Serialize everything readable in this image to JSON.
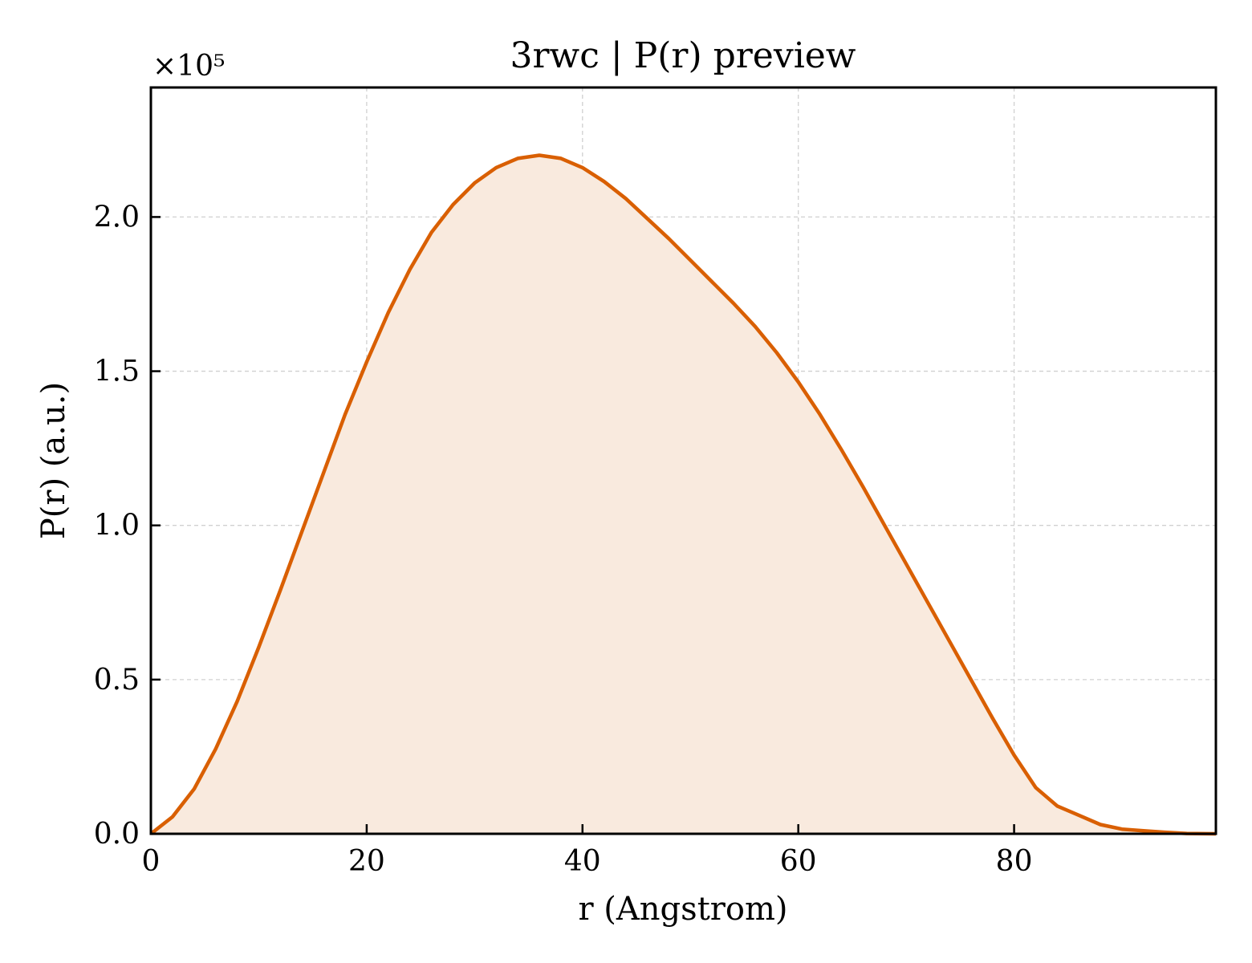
{
  "chart_data": {
    "type": "area",
    "title": "3rwc | P(r) preview",
    "xlabel": "r (Angstrom)",
    "ylabel": "P(r) (a.u.)",
    "y_offset_label": "×10⁵",
    "xlim": [
      0,
      98.7
    ],
    "ylim": [
      0,
      2.42
    ],
    "xticks": [
      0,
      20,
      40,
      60,
      80
    ],
    "xtick_labels": [
      "0",
      "20",
      "40",
      "60",
      "80"
    ],
    "yticks": [
      0,
      0.5,
      1.0,
      1.5,
      2.0
    ],
    "ytick_labels": [
      "0.0",
      "0.5",
      "1.0",
      "1.5",
      "2.0"
    ],
    "grid": true,
    "line_color": "#d95f02",
    "fill_color": "#f9eade",
    "series": [
      {
        "x": [
          0,
          2,
          4,
          6,
          8,
          10,
          12,
          14,
          16,
          18,
          20,
          22,
          24,
          26,
          28,
          30,
          32,
          34,
          36,
          38,
          40,
          42,
          44,
          46,
          48,
          50,
          52,
          54,
          56,
          58,
          60,
          62,
          64,
          66,
          68,
          70,
          72,
          74,
          76,
          78,
          80,
          82,
          84,
          86,
          88,
          90,
          92,
          94,
          96,
          98.7
        ],
        "y": [
          0.0,
          0.055,
          0.145,
          0.275,
          0.43,
          0.605,
          0.79,
          0.98,
          1.17,
          1.36,
          1.53,
          1.69,
          1.83,
          1.95,
          2.04,
          2.11,
          2.16,
          2.19,
          2.2,
          2.19,
          2.16,
          2.115,
          2.06,
          1.995,
          1.93,
          1.86,
          1.79,
          1.72,
          1.645,
          1.56,
          1.465,
          1.36,
          1.245,
          1.125,
          1.0,
          0.875,
          0.75,
          0.625,
          0.5,
          0.375,
          0.255,
          0.15,
          0.09,
          0.06,
          0.03,
          0.015,
          0.01,
          0.005,
          0.001,
          0.0
        ]
      }
    ]
  }
}
